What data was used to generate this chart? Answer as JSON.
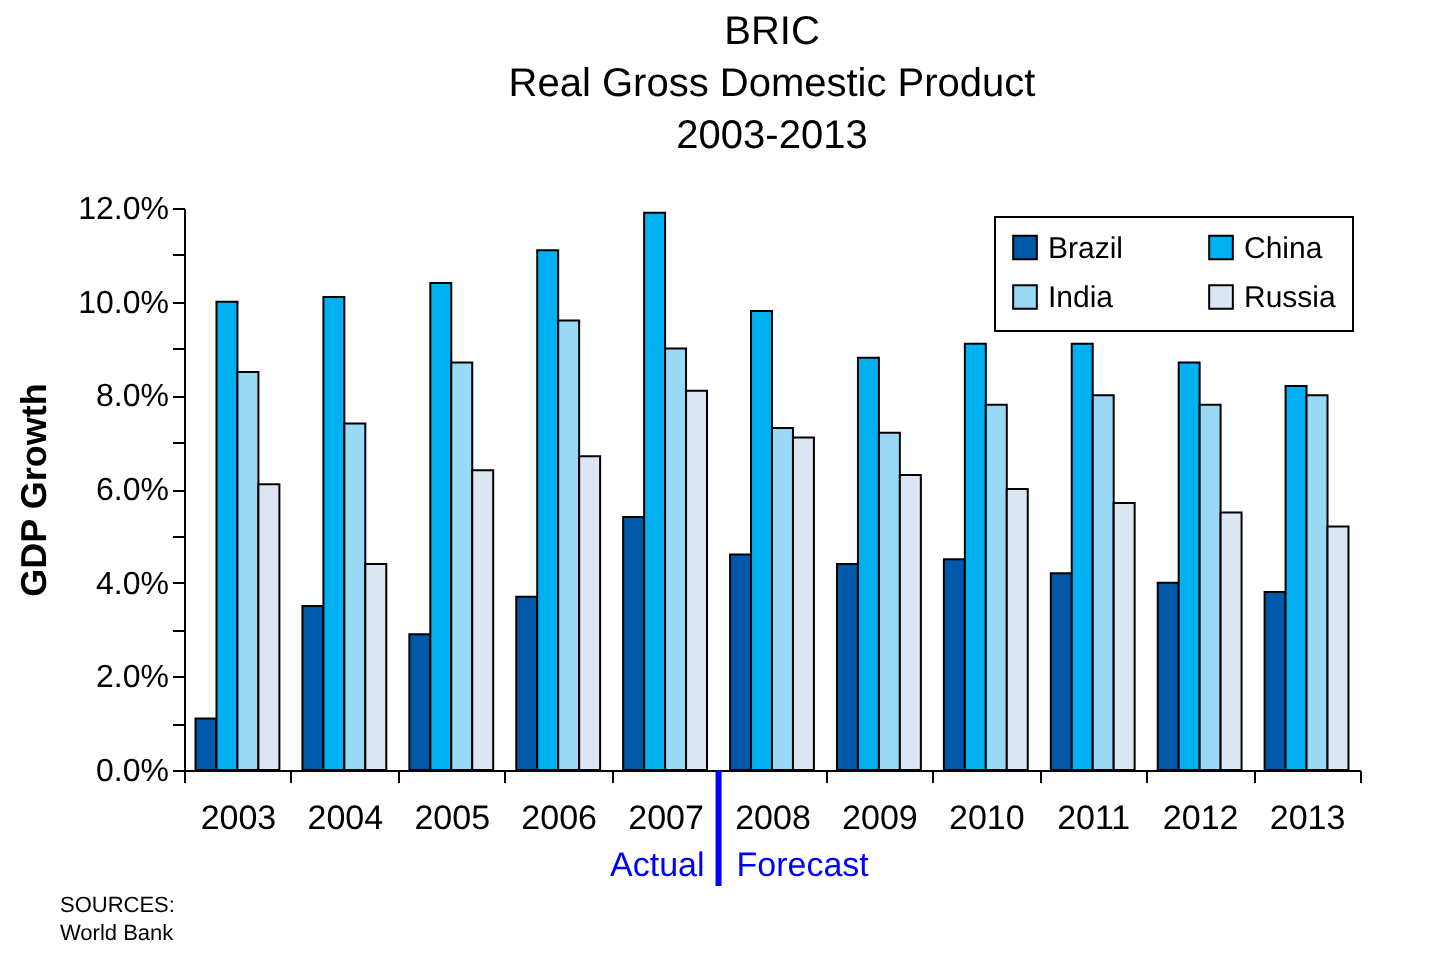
{
  "chart_data": {
    "type": "bar",
    "title": "BRIC\nReal Gross Domestic Product\n2003-2013",
    "ylabel": "GDP Growth",
    "categories": [
      "2003",
      "2004",
      "2005",
      "2006",
      "2007",
      "2008",
      "2009",
      "2010",
      "2011",
      "2012",
      "2013"
    ],
    "series": [
      {
        "name": "Brazil",
        "color": "#0058a8",
        "values": [
          1.1,
          3.5,
          2.9,
          3.7,
          5.4,
          4.6,
          4.4,
          4.5,
          4.2,
          4.0,
          3.8
        ]
      },
      {
        "name": "China",
        "color": "#00b0f0",
        "values": [
          10.0,
          10.1,
          10.4,
          11.1,
          11.9,
          9.8,
          8.8,
          9.1,
          9.1,
          8.7,
          8.2
        ]
      },
      {
        "name": "India",
        "color": "#99d9f5",
        "values": [
          8.5,
          7.4,
          8.7,
          9.6,
          9.0,
          7.3,
          7.2,
          7.8,
          8.0,
          7.8,
          8.0
        ]
      },
      {
        "name": "Russia",
        "color": "#dce6f2",
        "values": [
          6.1,
          4.4,
          6.4,
          6.7,
          8.1,
          7.1,
          6.3,
          6.0,
          5.7,
          5.5,
          5.2
        ]
      }
    ],
    "ylim": [
      0,
      12
    ],
    "yticks": [
      {
        "value": 0,
        "label": "0.0%"
      },
      {
        "value": 1,
        "label": null
      },
      {
        "value": 2,
        "label": "2.0%"
      },
      {
        "value": 3,
        "label": null
      },
      {
        "value": 4,
        "label": "4.0%"
      },
      {
        "value": 5,
        "label": null
      },
      {
        "value": 6,
        "label": "6.0%"
      },
      {
        "value": 7,
        "label": null
      },
      {
        "value": 8,
        "label": "8.0%"
      },
      {
        "value": 9,
        "label": null
      },
      {
        "value": 10,
        "label": "10.0%"
      },
      {
        "value": 11,
        "label": null
      },
      {
        "value": 12,
        "label": "12.0%"
      }
    ],
    "grid": false,
    "legend": "top right",
    "annotations": [
      "Actual",
      "Forecast",
      "SOURCES:\nWorld Bank"
    ]
  }
}
